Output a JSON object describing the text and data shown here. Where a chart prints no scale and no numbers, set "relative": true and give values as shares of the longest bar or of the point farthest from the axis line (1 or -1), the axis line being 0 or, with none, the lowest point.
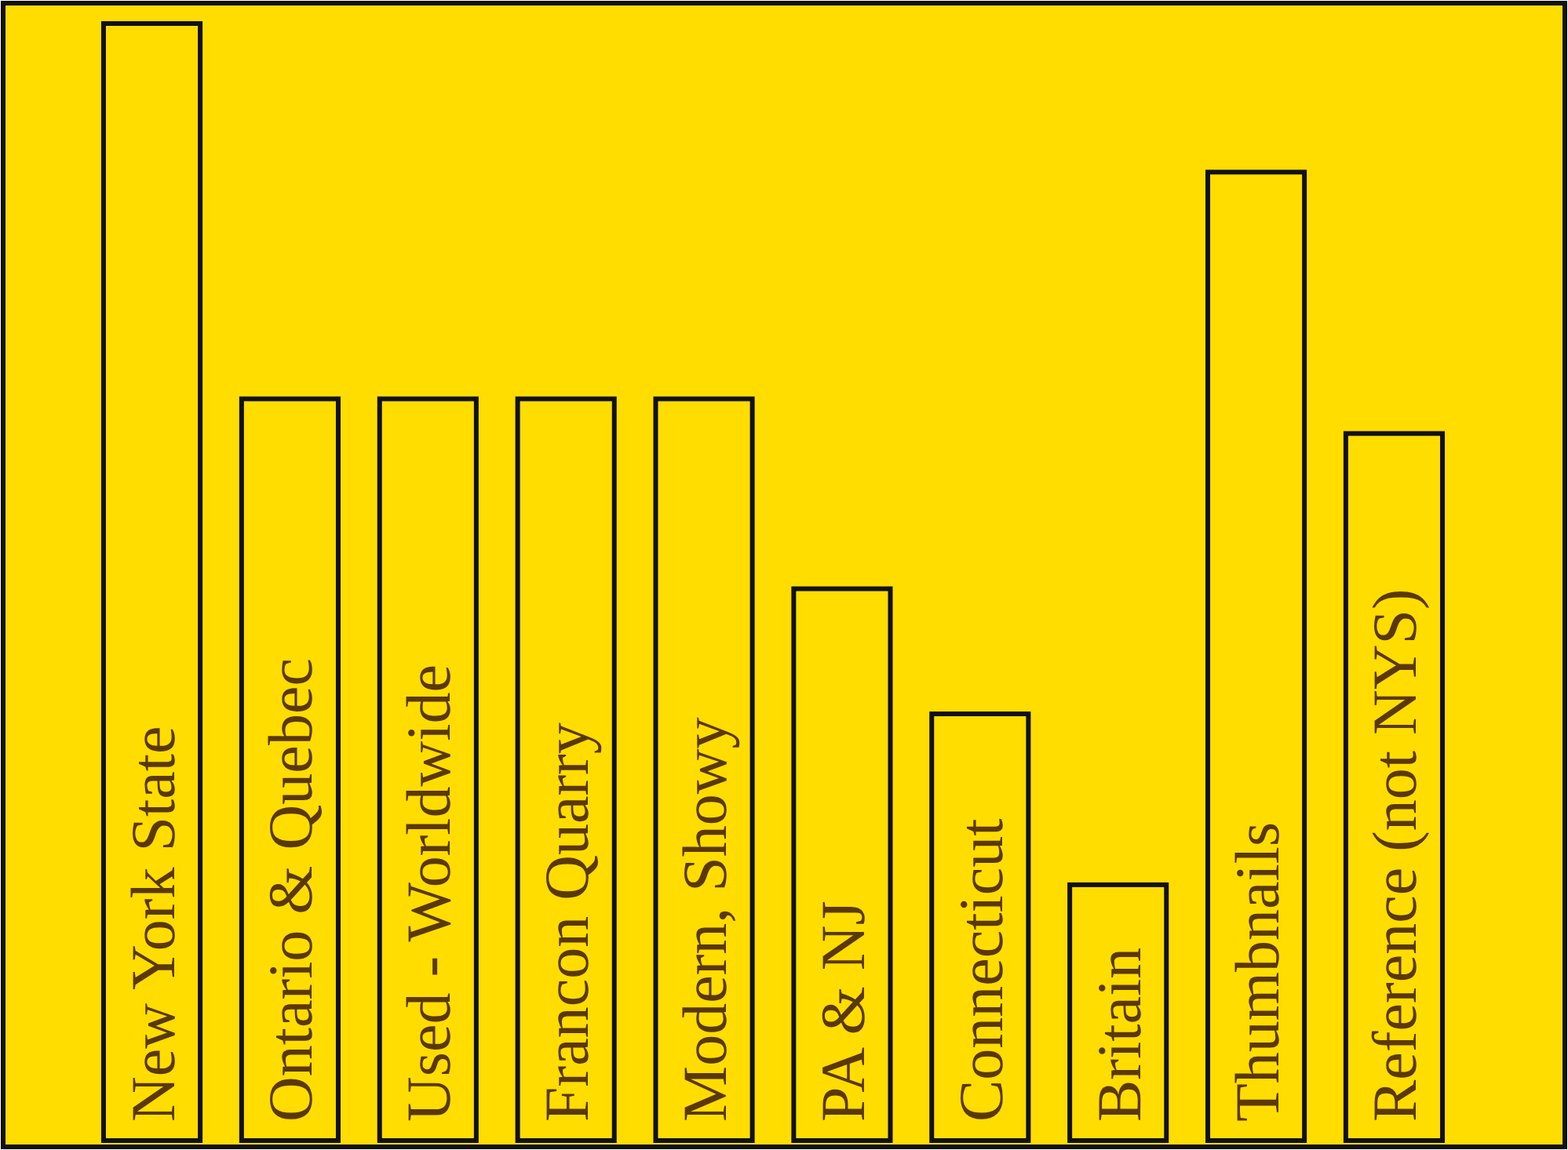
{
  "chart_data": {
    "type": "bar",
    "relative": true,
    "categories": [
      "New York State",
      "Ontario & Quebec",
      "Used - Worldwide",
      "Francon Quarry",
      "Modern, Showy",
      "PA & NJ",
      "Connecticut",
      "Britain",
      "Thumbnails",
      "Reference (not NYS)"
    ],
    "values": [
      1,
      0.664,
      0.664,
      0.664,
      0.664,
      0.494,
      0.382,
      0.229,
      0.867,
      0.633
    ],
    "color": "#ffdd00"
  }
}
